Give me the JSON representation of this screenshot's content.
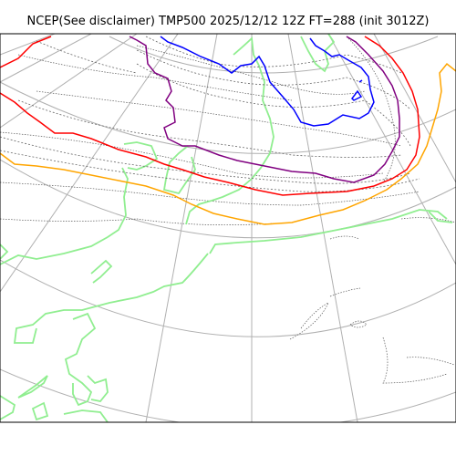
{
  "title": "NCEP(See disclaimer) TMP500 2025/12/12 12Z FT=288 (init 3012Z)",
  "colors": {
    "graticule": "#b0b0b0",
    "coastline": "#90ee90",
    "border": "#555555",
    "isotherm_blue": "#0000ff",
    "isotherm_purple": "#800080",
    "isotherm_red": "#ff0000",
    "isotherm_orange": "#ffa500",
    "isotherm_thin": "#666666"
  }
}
